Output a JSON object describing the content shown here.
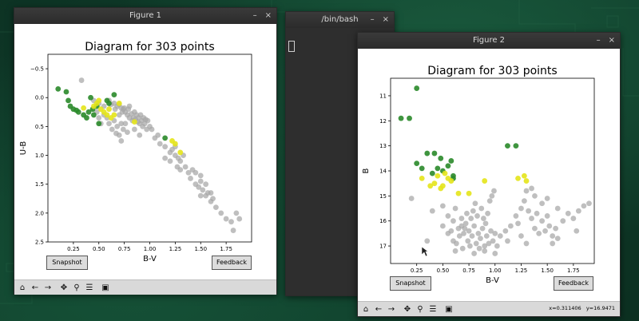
{
  "windows": {
    "figure1": {
      "title": "Figure 1",
      "snapshot_label": "Snapshot",
      "feedback_label": "Feedback"
    },
    "terminal": {
      "title": "/bin/bash"
    },
    "figure2": {
      "title": "Figure 2",
      "snapshot_label": "Snapshot",
      "feedback_label": "Feedback",
      "status_x": "x=0.311406",
      "status_y": "y=16.9471"
    }
  },
  "window_controls": {
    "minimize": "–",
    "close": "×"
  },
  "toolbar_icons": [
    "home-icon",
    "back-icon",
    "forward-icon",
    "pan-icon",
    "zoom-icon",
    "configure-icon",
    "save-icon"
  ],
  "colors": {
    "gray": "#a6a6a6",
    "green": "#2a8a2a",
    "yellow": "#e4e41a"
  },
  "chart_data": [
    {
      "type": "scatter",
      "title": "Diagram for 303 points",
      "xlabel": "B-V",
      "ylabel": "U-B",
      "xlim": [
        0.0,
        2.0
      ],
      "ylim": [
        2.5,
        -0.75
      ],
      "xticks": [
        0.25,
        0.5,
        0.75,
        1.0,
        1.25,
        1.5,
        1.75
      ],
      "xtick_labels": [
        "0.25",
        "0.50",
        "0.75",
        "1.00",
        "1.25",
        "1.50",
        "1.75"
      ],
      "yticks": [
        -0.5,
        0.0,
        0.5,
        1.0,
        1.5,
        2.0,
        2.5
      ],
      "ytick_labels": [
        "−0.5",
        "0.0",
        "0.5",
        "1.0",
        "1.5",
        "2.0",
        "2.5"
      ],
      "series": [
        {
          "color": "gray",
          "points": [
            [
              0.33,
              -0.3
            ],
            [
              0.45,
              0.05
            ],
            [
              0.5,
              0.1
            ],
            [
              0.55,
              0.15
            ],
            [
              0.6,
              0.05
            ],
            [
              0.62,
              0.12
            ],
            [
              0.65,
              0.1
            ],
            [
              0.66,
              0.2
            ],
            [
              0.68,
              0.15
            ],
            [
              0.7,
              0.12
            ],
            [
              0.72,
              0.18
            ],
            [
              0.73,
              0.25
            ],
            [
              0.74,
              0.2
            ],
            [
              0.75,
              0.18
            ],
            [
              0.76,
              0.25
            ],
            [
              0.78,
              0.3
            ],
            [
              0.79,
              0.2
            ],
            [
              0.8,
              0.35
            ],
            [
              0.8,
              0.15
            ],
            [
              0.82,
              0.28
            ],
            [
              0.83,
              0.4
            ],
            [
              0.84,
              0.35
            ],
            [
              0.85,
              0.25
            ],
            [
              0.86,
              0.38
            ],
            [
              0.87,
              0.3
            ],
            [
              0.88,
              0.42
            ],
            [
              0.89,
              0.35
            ],
            [
              0.9,
              0.45
            ],
            [
              0.91,
              0.3
            ],
            [
              0.92,
              0.4
            ],
            [
              0.93,
              0.5
            ],
            [
              0.94,
              0.35
            ],
            [
              0.95,
              0.45
            ],
            [
              0.96,
              0.38
            ],
            [
              0.97,
              0.55
            ],
            [
              0.98,
              0.4
            ],
            [
              1.0,
              0.5
            ],
            [
              1.02,
              0.55
            ],
            [
              0.6,
              0.45
            ],
            [
              0.58,
              0.35
            ],
            [
              0.65,
              0.4
            ],
            [
              0.68,
              0.5
            ],
            [
              0.7,
              0.3
            ],
            [
              0.72,
              0.45
            ],
            [
              0.74,
              0.55
            ],
            [
              0.76,
              0.45
            ],
            [
              0.78,
              0.6
            ],
            [
              0.55,
              0.3
            ],
            [
              0.5,
              0.35
            ],
            [
              0.48,
              0.25
            ],
            [
              0.52,
              0.45
            ],
            [
              0.63,
              0.55
            ],
            [
              0.67,
              0.62
            ],
            [
              0.7,
              0.65
            ],
            [
              0.72,
              0.75
            ],
            [
              0.85,
              0.55
            ],
            [
              0.9,
              0.65
            ],
            [
              1.05,
              0.7
            ],
            [
              1.1,
              0.8
            ],
            [
              1.08,
              0.65
            ],
            [
              1.15,
              0.85
            ],
            [
              1.2,
              0.95
            ],
            [
              1.25,
              1.0
            ],
            [
              1.22,
              0.9
            ],
            [
              1.28,
              1.05
            ],
            [
              1.3,
              1.1
            ],
            [
              1.33,
              1.0
            ],
            [
              1.35,
              1.2
            ],
            [
              1.38,
              1.3
            ],
            [
              1.4,
              1.4
            ],
            [
              1.42,
              1.25
            ],
            [
              1.45,
              1.5
            ],
            [
              1.48,
              1.55
            ],
            [
              1.5,
              1.45
            ],
            [
              1.52,
              1.6
            ],
            [
              1.55,
              1.7
            ],
            [
              1.57,
              1.65
            ],
            [
              1.6,
              1.8
            ],
            [
              1.62,
              1.75
            ],
            [
              1.65,
              1.9
            ],
            [
              1.7,
              2.0
            ],
            [
              1.75,
              2.1
            ],
            [
              1.8,
              2.15
            ],
            [
              1.82,
              2.3
            ],
            [
              1.85,
              2.0
            ],
            [
              1.88,
              2.1
            ],
            [
              1.6,
              1.65
            ],
            [
              1.55,
              1.5
            ],
            [
              1.5,
              1.35
            ],
            [
              1.45,
              1.3
            ],
            [
              1.2,
              1.1
            ],
            [
              1.15,
              1.05
            ],
            [
              1.27,
              1.2
            ],
            [
              1.25,
              0.85
            ],
            [
              1.3,
              1.25
            ],
            [
              1.5,
              1.7
            ]
          ]
        },
        {
          "color": "green",
          "points": [
            [
              0.1,
              -0.15
            ],
            [
              0.18,
              -0.1
            ],
            [
              0.2,
              0.05
            ],
            [
              0.22,
              0.15
            ],
            [
              0.25,
              0.2
            ],
            [
              0.28,
              0.22
            ],
            [
              0.3,
              0.25
            ],
            [
              0.35,
              0.3
            ],
            [
              0.38,
              0.35
            ],
            [
              0.4,
              0.25
            ],
            [
              0.42,
              0.0
            ],
            [
              0.44,
              0.2
            ],
            [
              0.45,
              0.3
            ],
            [
              0.48,
              0.15
            ],
            [
              0.5,
              0.45
            ],
            [
              0.58,
              0.05
            ],
            [
              0.6,
              0.1
            ],
            [
              0.65,
              -0.05
            ],
            [
              1.15,
              0.7
            ]
          ]
        },
        {
          "color": "yellow",
          "points": [
            [
              0.45,
              0.15
            ],
            [
              0.48,
              0.1
            ],
            [
              0.5,
              0.05
            ],
            [
              0.52,
              0.2
            ],
            [
              0.55,
              0.25
            ],
            [
              0.58,
              0.3
            ],
            [
              0.6,
              0.2
            ],
            [
              0.62,
              0.35
            ],
            [
              0.7,
              0.1
            ],
            [
              0.65,
              0.3
            ],
            [
              0.35,
              0.18
            ],
            [
              0.85,
              0.42
            ],
            [
              1.22,
              0.75
            ],
            [
              1.25,
              0.8
            ],
            [
              1.3,
              0.95
            ]
          ]
        }
      ]
    },
    {
      "type": "scatter",
      "title": "Diagram for 303 points",
      "xlabel": "B-V",
      "ylabel": "B",
      "xlim": [
        0.0,
        1.95
      ],
      "ylim": [
        17.7,
        10.3
      ],
      "xticks": [
        0.25,
        0.5,
        0.75,
        1.0,
        1.25,
        1.5,
        1.75
      ],
      "xtick_labels": [
        "0.25",
        "0.50",
        "0.75",
        "1.00",
        "1.25",
        "1.50",
        "1.75"
      ],
      "yticks": [
        11,
        12,
        13,
        14,
        15,
        16,
        17
      ],
      "ytick_labels": [
        "11",
        "12",
        "13",
        "14",
        "15",
        "16",
        "17"
      ],
      "series": [
        {
          "color": "gray",
          "points": [
            [
              0.2,
              15.1
            ],
            [
              0.4,
              15.6
            ],
            [
              0.5,
              15.4
            ],
            [
              0.55,
              15.8
            ],
            [
              0.6,
              16.0
            ],
            [
              0.62,
              15.5
            ],
            [
              0.65,
              16.3
            ],
            [
              0.68,
              15.9
            ],
            [
              0.7,
              16.5
            ],
            [
              0.72,
              16.1
            ],
            [
              0.74,
              16.8
            ],
            [
              0.75,
              16.4
            ],
            [
              0.76,
              17.0
            ],
            [
              0.78,
              16.6
            ],
            [
              0.8,
              16.2
            ],
            [
              0.82,
              16.9
            ],
            [
              0.84,
              16.5
            ],
            [
              0.85,
              17.1
            ],
            [
              0.86,
              16.7
            ],
            [
              0.88,
              16.3
            ],
            [
              0.9,
              17.0
            ],
            [
              0.92,
              16.6
            ],
            [
              0.94,
              16.9
            ],
            [
              0.96,
              16.4
            ],
            [
              0.98,
              16.8
            ],
            [
              1.0,
              16.5
            ],
            [
              1.02,
              17.0
            ],
            [
              0.58,
              16.4
            ],
            [
              0.6,
              16.8
            ],
            [
              0.63,
              16.9
            ],
            [
              0.66,
              16.6
            ],
            [
              0.69,
              17.1
            ],
            [
              0.71,
              16.3
            ],
            [
              0.73,
              15.7
            ],
            [
              0.77,
              15.9
            ],
            [
              0.79,
              15.6
            ],
            [
              0.81,
              15.3
            ],
            [
              0.83,
              15.8
            ],
            [
              0.87,
              15.5
            ],
            [
              0.89,
              15.9
            ],
            [
              0.91,
              16.1
            ],
            [
              0.93,
              15.7
            ],
            [
              0.95,
              15.2
            ],
            [
              0.97,
              15.0
            ],
            [
              0.99,
              14.8
            ],
            [
              1.05,
              16.6
            ],
            [
              1.1,
              16.4
            ],
            [
              1.12,
              16.8
            ],
            [
              1.15,
              16.2
            ],
            [
              1.2,
              15.8
            ],
            [
              1.22,
              16.1
            ],
            [
              1.25,
              15.5
            ],
            [
              1.28,
              15.2
            ],
            [
              1.3,
              14.8
            ],
            [
              1.32,
              15.6
            ],
            [
              1.35,
              15.9
            ],
            [
              1.38,
              16.3
            ],
            [
              1.4,
              15.7
            ],
            [
              1.42,
              16.5
            ],
            [
              1.45,
              16.0
            ],
            [
              1.48,
              16.4
            ],
            [
              1.5,
              15.8
            ],
            [
              1.52,
              16.2
            ],
            [
              1.55,
              16.6
            ],
            [
              1.58,
              16.3
            ],
            [
              1.6,
              15.5
            ],
            [
              1.65,
              16.0
            ],
            [
              1.7,
              15.7
            ],
            [
              1.75,
              15.9
            ],
            [
              1.78,
              16.4
            ],
            [
              1.8,
              15.6
            ],
            [
              1.85,
              15.4
            ],
            [
              1.9,
              15.3
            ],
            [
              1.38,
              15.0
            ],
            [
              1.35,
              14.7
            ],
            [
              1.45,
              15.3
            ],
            [
              1.5,
              15.1
            ],
            [
              1.55,
              16.9
            ],
            [
              1.6,
              16.7
            ],
            [
              1.3,
              16.9
            ],
            [
              1.25,
              16.6
            ],
            [
              0.35,
              16.8
            ],
            [
              0.5,
              16.2
            ],
            [
              0.55,
              16.5
            ],
            [
              0.62,
              17.2
            ],
            [
              0.68,
              16.2
            ],
            [
              0.8,
              17.3
            ],
            [
              0.9,
              17.2
            ],
            [
              1.0,
              17.3
            ]
          ]
        },
        {
          "color": "green",
          "points": [
            [
              0.25,
              10.7
            ],
            [
              0.1,
              11.9
            ],
            [
              0.18,
              11.9
            ],
            [
              0.25,
              13.7
            ],
            [
              0.3,
              13.9
            ],
            [
              0.35,
              13.3
            ],
            [
              0.4,
              14.1
            ],
            [
              0.42,
              13.3
            ],
            [
              0.45,
              13.9
            ],
            [
              0.48,
              13.5
            ],
            [
              0.5,
              14.0
            ],
            [
              0.55,
              13.8
            ],
            [
              0.58,
              13.6
            ],
            [
              0.6,
              14.2
            ],
            [
              0.6,
              14.3
            ],
            [
              1.12,
              13.0
            ],
            [
              1.2,
              13.0
            ]
          ]
        },
        {
          "color": "yellow",
          "points": [
            [
              0.3,
              14.3
            ],
            [
              0.38,
              14.6
            ],
            [
              0.42,
              14.5
            ],
            [
              0.45,
              14.2
            ],
            [
              0.48,
              14.7
            ],
            [
              0.5,
              14.6
            ],
            [
              0.52,
              14.1
            ],
            [
              0.55,
              14.3
            ],
            [
              0.58,
              14.4
            ],
            [
              0.65,
              14.9
            ],
            [
              0.75,
              14.9
            ],
            [
              0.9,
              14.4
            ],
            [
              1.22,
              14.3
            ],
            [
              1.28,
              14.2
            ],
            [
              1.3,
              14.4
            ]
          ]
        }
      ]
    }
  ]
}
